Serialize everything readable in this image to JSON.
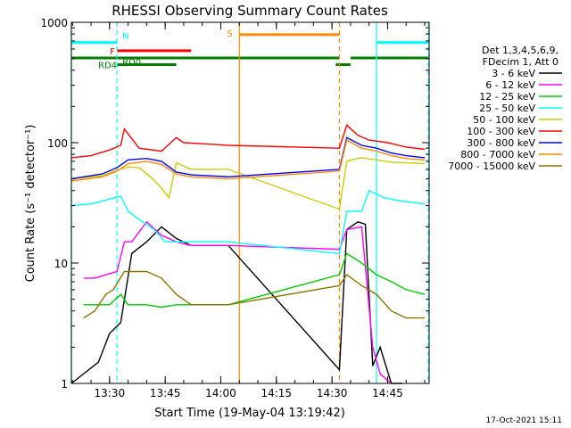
{
  "chart_data": {
    "type": "line",
    "title": "RHESSI Observing Summary Count Rates",
    "xlabel": "Start Time (19-May-04 13:19:42)",
    "ylabel": "Count Rate (s⁻¹ detector⁻¹)",
    "yscale": "log",
    "ylim": [
      1,
      1000
    ],
    "xlim": [
      "13:19:42",
      "14:56:12"
    ],
    "x_ticks": [
      "13:30",
      "13:45",
      "14:00",
      "14:15",
      "14:30",
      "14:45"
    ],
    "y_ticks": [
      "1",
      "10",
      "100",
      "1000"
    ],
    "grid": false,
    "legend_position": "right",
    "legend_header": [
      "Det 1,3,4,5,6,9,",
      "FDecim 1, Att 0"
    ],
    "series": [
      {
        "name": "3 - 6 keV",
        "color": "#000000",
        "x": [
          "13:19:42",
          "13:27",
          "13:30",
          "13:33",
          "13:36",
          "13:40",
          "13:44",
          "13:48",
          "13:52",
          "14:02",
          "14:32",
          "14:34",
          "14:37",
          "14:39",
          "14:41",
          "14:43",
          "14:46",
          "14:49"
        ],
        "values": [
          0.9,
          1.5,
          2.6,
          3.2,
          12,
          15,
          20,
          16,
          14,
          14,
          1.3,
          19,
          22,
          21,
          1.4,
          2.0,
          1.0,
          0.9
        ]
      },
      {
        "name": "6 - 12 keV",
        "color": "#ff00ff",
        "x": [
          "13:23",
          "13:26",
          "13:29",
          "13:32",
          "13:34",
          "13:36",
          "13:40",
          "13:44",
          "13:48",
          "13:52",
          "14:02",
          "14:32",
          "14:34",
          "14:38",
          "14:41",
          "14:43",
          "14:46"
        ],
        "values": [
          7.5,
          7.5,
          8.0,
          8.5,
          15,
          15,
          22,
          17,
          15,
          14,
          14,
          13,
          19,
          20,
          2.0,
          1.2,
          1.0
        ]
      },
      {
        "name": "12 - 25 keV",
        "color": "#00cc00",
        "x": [
          "13:23",
          "13:30",
          "13:33",
          "13:35",
          "13:40",
          "13:44",
          "13:48",
          "13:52",
          "14:02",
          "14:32",
          "14:34",
          "14:38",
          "14:42",
          "14:46",
          "14:50",
          "14:55"
        ],
        "values": [
          4.5,
          4.5,
          5.5,
          4.5,
          4.5,
          4.3,
          4.5,
          4.5,
          4.5,
          8.0,
          12,
          10,
          8.0,
          7.0,
          6.0,
          5.5
        ]
      },
      {
        "name": "25 - 50 keV",
        "color": "#00ffff",
        "x": [
          "13:19:42",
          "13:25",
          "13:30",
          "13:33",
          "13:35",
          "13:38",
          "13:42",
          "13:45",
          "13:48",
          "14:02",
          "14:32",
          "14:34",
          "14:38",
          "14:40",
          "14:44",
          "14:48",
          "14:55"
        ],
        "values": [
          30,
          31,
          34,
          36,
          27,
          23,
          19,
          15,
          15,
          15,
          12,
          27,
          27,
          40,
          35,
          33,
          31
        ]
      },
      {
        "name": "50 - 100 keV",
        "color": "#cccc00",
        "x": [
          "13:19:42",
          "13:28",
          "13:32",
          "13:35",
          "13:38",
          "13:41",
          "13:44",
          "13:46",
          "13:48",
          "13:52",
          "14:02",
          "14:32",
          "14:34",
          "14:36",
          "14:38",
          "14:42",
          "14:46",
          "14:55"
        ],
        "values": [
          50,
          53,
          59,
          63,
          62,
          52,
          42,
          35,
          68,
          60,
          60,
          28,
          70,
          73,
          75,
          72,
          69,
          67
        ]
      },
      {
        "name": "100 - 300 keV",
        "color": "#ff0000",
        "x": [
          "13:19:42",
          "13:25",
          "13:30",
          "13:33",
          "13:34",
          "13:38",
          "13:44",
          "13:48",
          "13:50",
          "13:55",
          "14:02",
          "14:32",
          "14:34",
          "14:37",
          "14:40",
          "14:45",
          "14:50",
          "14:55"
        ],
        "values": [
          75,
          78,
          87,
          95,
          130,
          90,
          85,
          110,
          100,
          98,
          95,
          90,
          140,
          115,
          105,
          100,
          92,
          88
        ]
      },
      {
        "name": "300 - 800 keV",
        "color": "#0000ff",
        "x": [
          "13:19:42",
          "13:28",
          "13:32",
          "13:35",
          "13:40",
          "13:44",
          "13:48",
          "13:52",
          "14:02",
          "14:32",
          "14:34",
          "14:38",
          "14:42",
          "14:46",
          "14:50",
          "14:55"
        ],
        "values": [
          50,
          55,
          62,
          72,
          74,
          70,
          57,
          54,
          52,
          60,
          110,
          95,
          90,
          82,
          78,
          75
        ]
      },
      {
        "name": "800 - 7000 keV",
        "color": "#ff8800",
        "x": [
          "13:19:42",
          "13:28",
          "13:32",
          "13:35",
          "13:40",
          "13:44",
          "13:48",
          "13:52",
          "14:02",
          "14:32",
          "14:34",
          "14:38",
          "14:42",
          "14:46",
          "14:50",
          "14:55"
        ],
        "values": [
          48,
          52,
          58,
          67,
          70,
          66,
          55,
          52,
          50,
          58,
          105,
          90,
          85,
          78,
          74,
          72
        ]
      },
      {
        "name": "7000 - 15000 keV",
        "color": "#8b7500",
        "x": [
          "13:23",
          "13:26",
          "13:29",
          "13:31",
          "13:34",
          "13:36",
          "13:40",
          "13:44",
          "13:48",
          "13:52",
          "14:02",
          "14:32",
          "14:34",
          "14:38",
          "14:42",
          "14:46",
          "14:50",
          "14:55"
        ],
        "values": [
          3.5,
          4.0,
          5.5,
          6.0,
          8.5,
          8.5,
          8.5,
          7.5,
          5.5,
          4.5,
          4.5,
          6.5,
          8.0,
          6.5,
          5.5,
          4.0,
          3.5,
          3.5
        ]
      }
    ],
    "flags": [
      {
        "label": "N",
        "color": "#00ffff",
        "level": 680,
        "segments": [
          [
            "13:19:42",
            "13:32"
          ],
          [
            "14:42",
            "14:56:12"
          ]
        ]
      },
      {
        "label": "F",
        "color": "#ff0000",
        "level": 580,
        "segments": [
          [
            "13:32",
            "13:52"
          ]
        ]
      },
      {
        "label": "S",
        "color": "#ff8800",
        "level": 790,
        "segments": [
          [
            "14:05",
            "14:32"
          ]
        ]
      },
      {
        "label": "RD0",
        "color": "#008000",
        "level": 505,
        "segments": [
          [
            "13:19:42",
            "14:32"
          ],
          [
            "14:35",
            "14:56:12"
          ]
        ]
      },
      {
        "label": "RD4",
        "color": "#008000",
        "level": 445,
        "segments": [
          [
            "13:32",
            "13:48"
          ],
          [
            "14:31",
            "14:35"
          ]
        ]
      }
    ],
    "vertical_markers": [
      {
        "time": "13:19:42",
        "color": "#00ffff",
        "style": "solid"
      },
      {
        "time": "13:32",
        "color": "#00ffff",
        "style": "dashed"
      },
      {
        "time": "14:05",
        "color": "#ff8800",
        "style": "solid"
      },
      {
        "time": "14:32",
        "color": "#ff8800",
        "style": "dashed"
      },
      {
        "time": "14:42",
        "color": "#00ffff",
        "style": "solid"
      },
      {
        "time": "14:56",
        "color": "#00ffff",
        "style": "dashed"
      }
    ]
  },
  "footer": {
    "date": "17-Oct-2021 15:11"
  }
}
